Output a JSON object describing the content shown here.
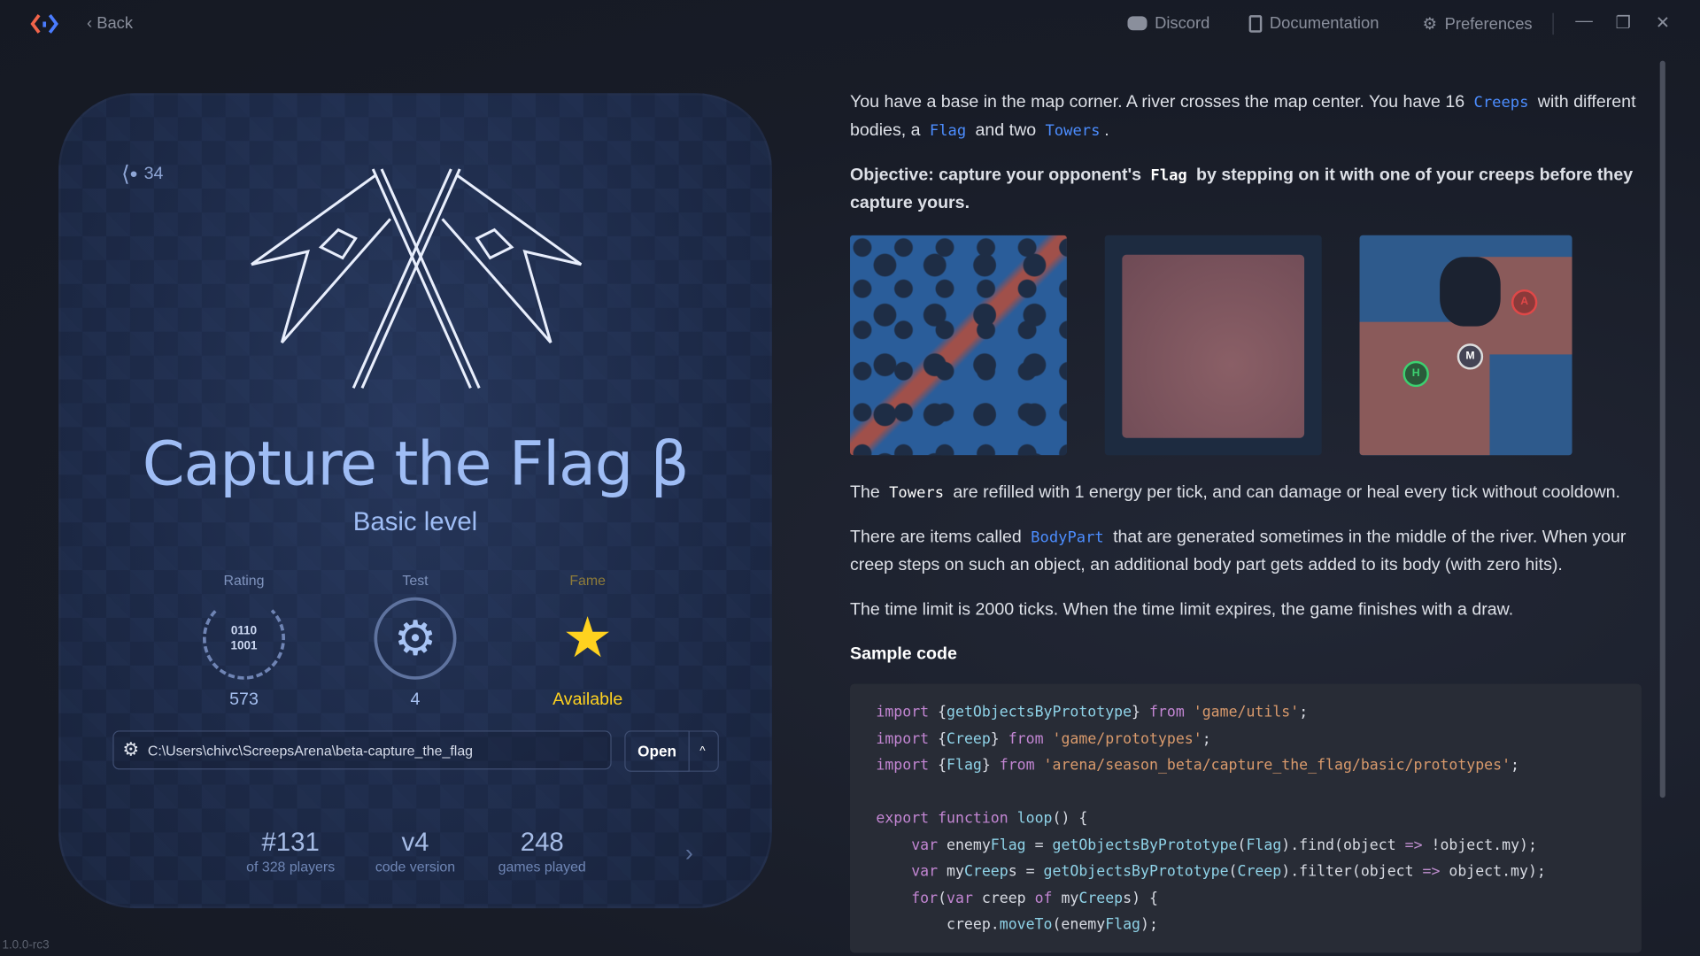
{
  "topbar": {
    "back_label": "Back",
    "discord_label": "Discord",
    "docs_label": "Documentation",
    "prefs_label": "Preferences"
  },
  "card": {
    "share_count": "34",
    "title": "Capture the Flag β",
    "subtitle": "Basic level",
    "stats": [
      {
        "label": "Rating",
        "value": "573",
        "badge_text": [
          "0110",
          "1001"
        ]
      },
      {
        "label": "Test",
        "value": "4"
      },
      {
        "label": "Fame",
        "value": "Available"
      }
    ],
    "path": "C:\\Users\\chivc\\ScreepsArena\\beta-capture_the_flag",
    "open_label": "Open",
    "bottom_stats": [
      {
        "big": "#131",
        "small": "of 328 players"
      },
      {
        "big": "v4",
        "small": "code version"
      },
      {
        "big": "248",
        "small": "games played"
      }
    ]
  },
  "content": {
    "p1": [
      "You have a base in the map corner. A river crosses the map center. You have 16 ",
      "Creeps",
      " with different bodies, a ",
      "Flag",
      " and two ",
      "Towers",
      "."
    ],
    "p2": [
      "Objective: capture your opponent's ",
      "Flag",
      " by stepping on it with one of your creeps before they capture yours."
    ],
    "map_markers": [
      "A",
      "M",
      "H"
    ],
    "p3": [
      "The ",
      "Towers",
      " are refilled with 1 energy per tick, and can damage or heal every tick without cooldown."
    ],
    "p4": [
      "There are items called ",
      "BodyPart",
      " that are generated sometimes in the middle of the river. When your creep steps on such an object, an additional body part gets added to its body (with zero hits)."
    ],
    "p5": "The time limit is 2000 ticks. When the time limit expires, the game finishes with a draw.",
    "sample_heading": "Sample code",
    "code": [
      "import {getObjectsByPrototype} from 'game/utils';",
      "import {Creep} from 'game/prototypes';",
      "import {Flag} from 'arena/season_beta/capture_the_flag/basic/prototypes';",
      "",
      "export function loop() {",
      "    var enemyFlag = getObjectsByPrototype(Flag).find(object => !object.my);",
      "    var myCreeps = getObjectsByPrototype(Creep).filter(object => object.my);",
      "    for(var creep of myCreeps) {",
      "        creep.moveTo(enemyFlag);"
    ]
  },
  "version": "1.0.0-rc3",
  "colors": {
    "accent": "#4c8dff",
    "title": "#9fbdf5",
    "fame": "#ffd21f"
  }
}
